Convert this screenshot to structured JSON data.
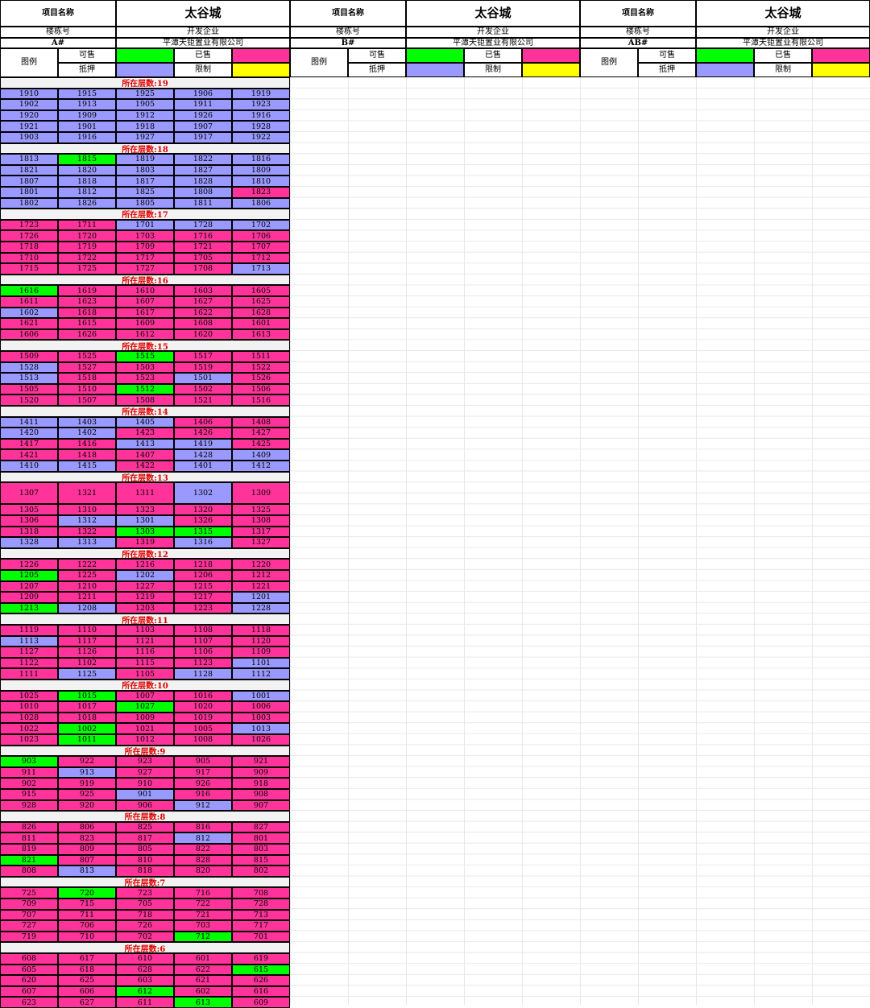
{
  "colors": {
    "P": "#9999ff",
    "S": "#ff3399",
    "G": "#00ff00",
    "Y": "#ffff00",
    "W": "#ffffff"
  },
  "labels": {
    "project": "项目名称",
    "building": "楼栋号",
    "developer": "开发企业",
    "legend": "图例",
    "available": "可售",
    "sold": "已售",
    "mortgaged": "抵押",
    "restricted": "限制",
    "floor_prefix": "所在层数:"
  },
  "buildings": [
    {
      "project_name": "太谷城",
      "building_no": "A#",
      "developer_name": "平潭天钜置业有限公司"
    },
    {
      "project_name": "太谷城",
      "building_no": "B#",
      "developer_name": "平潭天钜置业有限公司"
    },
    {
      "project_name": "太谷城",
      "building_no": "AB#",
      "developer_name": "平潭天钜置业有限公司"
    }
  ],
  "a_floors": [
    {
      "floor": "19",
      "rows": [
        [
          "1910P",
          "1915P",
          "1925P",
          "1906P",
          "1919P"
        ],
        [
          "1902P",
          "1913P",
          "1905P",
          "1911P",
          "1923P"
        ],
        [
          "1920P",
          "1909P",
          "1912P",
          "1926P",
          "1916P"
        ],
        [
          "1921P",
          "1901P",
          "1918P",
          "1907P",
          "1928P"
        ],
        [
          "1903P",
          "1916P",
          "1927P",
          "1917P",
          "1922P"
        ]
      ]
    },
    {
      "floor": "18",
      "rows": [
        [
          "1813P",
          "1815G",
          "1819P",
          "1822P",
          "1816P"
        ],
        [
          "1821P",
          "1820P",
          "1803P",
          "1827P",
          "1809P"
        ],
        [
          "1807P",
          "1818P",
          "1817P",
          "1828P",
          "1810P"
        ],
        [
          "1801P",
          "1812P",
          "1825P",
          "1808P",
          "1823S"
        ],
        [
          "1802P",
          "1826P",
          "1805P",
          "1811P",
          "1806P"
        ]
      ]
    },
    {
      "floor": "17",
      "rows": [
        [
          "1723S",
          "1711S",
          "1701P",
          "1728P",
          "1702P"
        ],
        [
          "1726S",
          "1720S",
          "1703S",
          "1716S",
          "1706S"
        ],
        [
          "1718S",
          "1719S",
          "1709S",
          "1721S",
          "1707S"
        ],
        [
          "1710S",
          "1722S",
          "1717S",
          "1705S",
          "1712S"
        ],
        [
          "1715S",
          "1725S",
          "1727S",
          "1708S",
          "1713P"
        ]
      ]
    },
    {
      "floor": "16",
      "rows": [
        [
          "1616G",
          "1619S",
          "1610S",
          "1603S",
          "1605S"
        ],
        [
          "1611S",
          "1623S",
          "1607S",
          "1627S",
          "1625S"
        ],
        [
          "1602P",
          "1618S",
          "1617S",
          "1622S",
          "1628S"
        ],
        [
          "1621S",
          "1615S",
          "1609S",
          "1608S",
          "1601S"
        ],
        [
          "1606S",
          "1626S",
          "1612S",
          "1620S",
          "1613S"
        ]
      ]
    },
    {
      "floor": "15",
      "rows": [
        [
          "1509S",
          "1525S",
          "1515G",
          "1517S",
          "1511S"
        ],
        [
          "1528P",
          "1527S",
          "1503S",
          "1519S",
          "1522S"
        ],
        [
          "1513P",
          "1518S",
          "1523S",
          "1501P",
          "1526S"
        ],
        [
          "1505S",
          "1510S",
          "1512G",
          "1502S",
          "1506S"
        ],
        [
          "1520S",
          "1507S",
          "1508S",
          "1521S",
          "1516S"
        ]
      ]
    },
    {
      "floor": "14",
      "rows": [
        [
          "1411P",
          "1403P",
          "1405P",
          "1406S",
          "1408S"
        ],
        [
          "1420P",
          "1402P",
          "1423S",
          "1426S",
          "1427S"
        ],
        [
          "1417S",
          "1416S",
          "1413P",
          "1419P",
          "1425S"
        ],
        [
          "1421S",
          "1418S",
          "1407S",
          "1428P",
          "1409P"
        ],
        [
          "1410P",
          "1415P",
          "1422S",
          "1401P",
          "1412P"
        ]
      ]
    },
    {
      "floor": "13",
      "rows": [
        [
          "1307S",
          "1321S",
          "1311S",
          "1302P",
          "1309S"
        ],
        [
          "1305S",
          "1310S",
          "1323S",
          "1320S",
          "1325S"
        ],
        [
          "1306S",
          "1312P",
          "1301P",
          "1326S",
          "1308S"
        ],
        [
          "1318S",
          "1322S",
          "1303G",
          "1315G",
          "1317S"
        ],
        [
          "1328P",
          "1313P",
          "1319S",
          "1316P",
          "1327S"
        ]
      ]
    },
    {
      "floor": "12",
      "rows": [
        [
          "1226S",
          "1222S",
          "1216S",
          "1218S",
          "1220S"
        ],
        [
          "1205G",
          "1225S",
          "1202P",
          "1206S",
          "1212S"
        ],
        [
          "1207S",
          "1210S",
          "1227S",
          "1215S",
          "1221S"
        ],
        [
          "1209S",
          "1211S",
          "1219S",
          "1217S",
          "1201P"
        ],
        [
          "1213G",
          "1208P",
          "1203S",
          "1223S",
          "1228P"
        ]
      ]
    },
    {
      "floor": "11",
      "rows": [
        [
          "1119S",
          "1110S",
          "1103S",
          "1108S",
          "1118S"
        ],
        [
          "1113P",
          "1117S",
          "1121S",
          "1107S",
          "1120S"
        ],
        [
          "1127S",
          "1126S",
          "1116S",
          "1106S",
          "1109S"
        ],
        [
          "1122S",
          "1102S",
          "1115S",
          "1123S",
          "1101P"
        ],
        [
          "1111S",
          "1125P",
          "1105S",
          "1128P",
          "1112P"
        ]
      ]
    },
    {
      "floor": "10",
      "rows": [
        [
          "1025S",
          "1015G",
          "1007S",
          "1016S",
          "1001P"
        ],
        [
          "1010S",
          "1017S",
          "1027G",
          "1020S",
          "1006S"
        ],
        [
          "1028S",
          "1018S",
          "1009S",
          "1019S",
          "1003S"
        ],
        [
          "1022S",
          "1002G",
          "1021S",
          "1005S",
          "1013P"
        ],
        [
          "1023S",
          "1011G",
          "1012S",
          "1008S",
          "1026S"
        ]
      ]
    },
    {
      "floor": "9",
      "rows": [
        [
          "903G",
          "922S",
          "923S",
          "905S",
          "921S"
        ],
        [
          "911S",
          "913P",
          "927S",
          "917S",
          "909S"
        ],
        [
          "902S",
          "919S",
          "910S",
          "926S",
          "918S"
        ],
        [
          "915S",
          "925S",
          "901P",
          "916S",
          "908S"
        ],
        [
          "928S",
          "920S",
          "906S",
          "912P",
          "907S"
        ]
      ]
    },
    {
      "floor": "8",
      "rows": [
        [
          "826S",
          "806S",
          "825S",
          "816S",
          "827S"
        ],
        [
          "811S",
          "823S",
          "817S",
          "812P",
          "801S"
        ],
        [
          "819S",
          "809S",
          "805S",
          "822S",
          "803S"
        ],
        [
          "821G",
          "807S",
          "810S",
          "828S",
          "815S"
        ],
        [
          "808S",
          "813P",
          "818S",
          "820S",
          "802S"
        ]
      ]
    },
    {
      "floor": "7",
      "rows": [
        [
          "725S",
          "720G",
          "723S",
          "716S",
          "708S"
        ],
        [
          "709S",
          "715S",
          "705S",
          "722S",
          "728S"
        ],
        [
          "707S",
          "711S",
          "718S",
          "721S",
          "713S"
        ],
        [
          "727S",
          "706S",
          "726S",
          "703S",
          "717S"
        ],
        [
          "719S",
          "710S",
          "702S",
          "712G",
          "701S"
        ]
      ]
    },
    {
      "floor": "6",
      "rows": [
        [
          "608S",
          "617S",
          "610S",
          "601S",
          "619S"
        ],
        [
          "605S",
          "618S",
          "628S",
          "622S",
          "615G"
        ],
        [
          "620S",
          "625S",
          "603S",
          "621S",
          "626S"
        ],
        [
          "607S",
          "606S",
          "612G",
          "602S",
          "616S"
        ],
        [
          "623S",
          "627S",
          "611S",
          "613G",
          "609S"
        ]
      ]
    }
  ]
}
